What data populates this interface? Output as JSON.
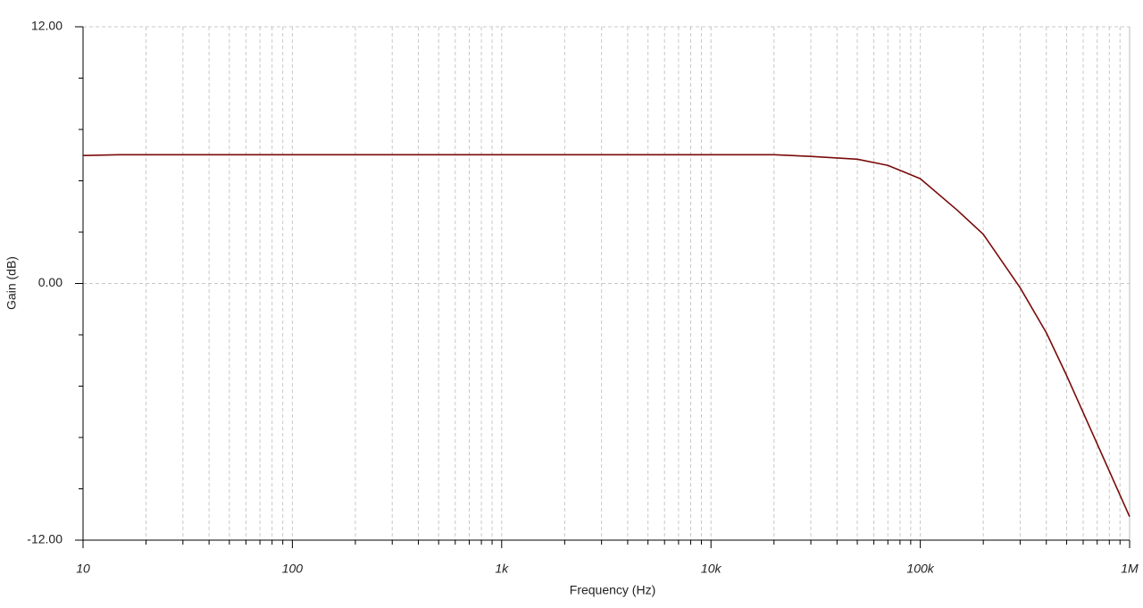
{
  "chart_data": {
    "type": "line",
    "ylabel": "Gain (dB)",
    "xlabel": "Frequency (Hz)",
    "xscale": "log",
    "x": [
      10,
      15,
      20,
      50,
      100,
      1000,
      10000,
      20000,
      30000,
      50000,
      70000,
      100000,
      150000,
      200000,
      300000,
      400000,
      500000,
      700000,
      1000000
    ],
    "values": [
      5.98,
      6.02,
      6.02,
      6.02,
      6.02,
      6.02,
      6.02,
      6.02,
      5.94,
      5.81,
      5.52,
      4.9,
      3.43,
      2.3,
      -0.2,
      -2.3,
      -4.3,
      -7.5,
      -10.9
    ],
    "color": "#7a0a0a",
    "xlim": [
      10,
      1000000
    ],
    "ylim": [
      -12,
      12
    ],
    "xticks": [
      {
        "value": 10,
        "label": "10"
      },
      {
        "value": 100,
        "label": "100"
      },
      {
        "value": 1000,
        "label": "1k"
      },
      {
        "value": 10000,
        "label": "10k"
      },
      {
        "value": 100000,
        "label": "100k"
      },
      {
        "value": 1000000,
        "label": "1M"
      }
    ],
    "xminorticks": [
      20,
      30,
      40,
      50,
      60,
      70,
      80,
      90,
      200,
      300,
      400,
      500,
      600,
      700,
      800,
      900,
      2000,
      3000,
      4000,
      5000,
      6000,
      7000,
      8000,
      9000,
      20000,
      30000,
      40000,
      50000,
      60000,
      70000,
      80000,
      90000,
      200000,
      300000,
      400000,
      500000,
      600000,
      700000,
      800000,
      900000
    ],
    "yticks": [
      {
        "value": -12,
        "label": "-12.00"
      },
      {
        "value": 0,
        "label": "0.00"
      },
      {
        "value": 12,
        "label": "12.00"
      }
    ],
    "yminorticks": [
      -9.6,
      -7.2,
      -4.8,
      -2.4,
      2.4,
      4.8,
      7.2,
      9.6
    ],
    "grid": true
  }
}
